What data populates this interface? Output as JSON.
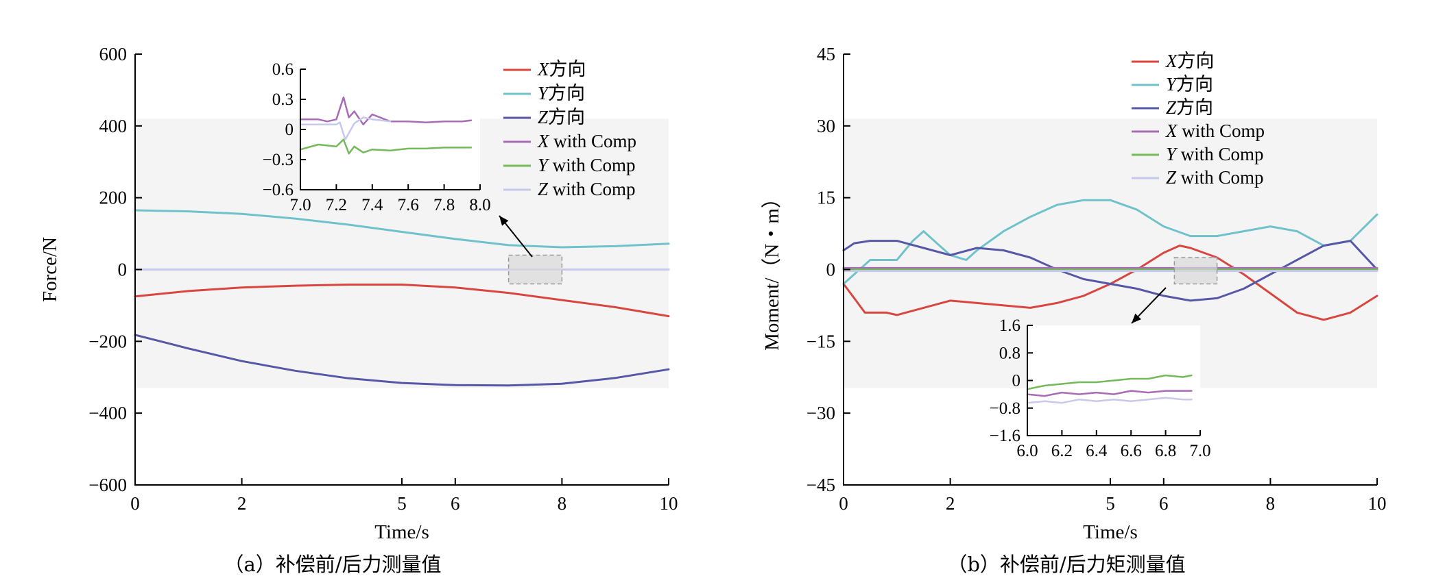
{
  "chart_data": [
    {
      "type": "line",
      "panel": "a",
      "caption": "（a）补偿前/后力测量值",
      "xlabel": "Time/s",
      "ylabel": "Force/N",
      "xlim": [
        0,
        10
      ],
      "ylim": [
        -600,
        600
      ],
      "x_ticks": [
        0,
        2,
        5,
        6,
        8,
        10
      ],
      "x_tick_labels": [
        "0",
        "2",
        "5",
        "6",
        "8",
        "10"
      ],
      "y_ticks": [
        -600,
        -400,
        -200,
        0,
        200,
        400,
        600
      ],
      "y_tick_labels": [
        "−600",
        "−400",
        "−200",
        "0",
        "200",
        "400",
        "600"
      ],
      "legend_position": "top-right",
      "legend": [
        "X方向",
        "Y方向",
        "Z方向",
        "X with Comp",
        "Y with Comp",
        "Z with Comp"
      ],
      "series": [
        {
          "name": "X方向",
          "color": "#d8463f",
          "x": [
            0,
            1,
            2,
            3,
            4,
            5,
            6,
            7,
            8,
            9,
            10
          ],
          "y": [
            -75,
            -60,
            -50,
            -45,
            -42,
            -42,
            -50,
            -65,
            -85,
            -105,
            -130
          ]
        },
        {
          "name": "Y方向",
          "color": "#6fc2cc",
          "x": [
            0,
            1,
            2,
            3,
            4,
            5,
            6,
            7,
            8,
            9,
            10
          ],
          "y": [
            165,
            162,
            155,
            142,
            125,
            105,
            85,
            68,
            62,
            65,
            72
          ]
        },
        {
          "name": "Z方向",
          "color": "#5657a6",
          "x": [
            0,
            1,
            2,
            3,
            4,
            5,
            6,
            7,
            8,
            9,
            10
          ],
          "y": [
            -182,
            -220,
            -255,
            -282,
            -303,
            -316,
            -322,
            -323,
            -318,
            -302,
            -278
          ]
        },
        {
          "name": "X with Comp",
          "color": "#a86bb5",
          "x": [
            0,
            10
          ],
          "y": [
            0,
            0
          ]
        },
        {
          "name": "Y with Comp",
          "color": "#74b95a",
          "x": [
            0,
            10
          ],
          "y": [
            0,
            0
          ]
        },
        {
          "name": "Z with Comp",
          "color": "#c6c8ec",
          "x": [
            0,
            10
          ],
          "y": [
            0,
            0
          ]
        }
      ],
      "zoom_region": {
        "x": [
          7.0,
          8.0
        ],
        "y": [
          -40,
          40
        ]
      },
      "inset": {
        "xlim": [
          7.0,
          8.0
        ],
        "ylim": [
          -0.6,
          0.6
        ],
        "x_ticks": [
          7.0,
          7.2,
          7.4,
          7.6,
          7.8,
          8.0
        ],
        "x_tick_labels": [
          "7.0",
          "7.2",
          "7.4",
          "7.6",
          "7.8",
          "8.0"
        ],
        "y_ticks": [
          -0.6,
          -0.3,
          0,
          0.3,
          0.6
        ],
        "y_tick_labels": [
          "−0.6",
          "−0.3",
          "0",
          "0.3",
          "0.6"
        ],
        "series": [
          {
            "name": "X with Comp",
            "color": "#a86bb5",
            "x": [
              7.0,
              7.1,
              7.15,
              7.2,
              7.24,
              7.27,
              7.3,
              7.35,
              7.4,
              7.5,
              7.6,
              7.7,
              7.8,
              7.9,
              7.95
            ],
            "y": [
              0.1,
              0.1,
              0.08,
              0.1,
              0.32,
              0.12,
              0.18,
              0.05,
              0.15,
              0.08,
              0.08,
              0.07,
              0.08,
              0.08,
              0.09
            ]
          },
          {
            "name": "Y with Comp",
            "color": "#74b95a",
            "x": [
              7.0,
              7.1,
              7.2,
              7.24,
              7.27,
              7.3,
              7.35,
              7.4,
              7.5,
              7.6,
              7.7,
              7.8,
              7.9,
              7.95
            ],
            "y": [
              -0.2,
              -0.15,
              -0.17,
              -0.1,
              -0.24,
              -0.17,
              -0.23,
              -0.2,
              -0.21,
              -0.19,
              -0.19,
              -0.18,
              -0.18,
              -0.18
            ]
          },
          {
            "name": "Z with Comp",
            "color": "#c6c8ec",
            "x": [
              7.0,
              7.1,
              7.2,
              7.22,
              7.25,
              7.3,
              7.35,
              7.4,
              7.5
            ],
            "y": [
              0.05,
              0.05,
              0.05,
              0.07,
              -0.1,
              0.06,
              0.12,
              0.1,
              0.08
            ]
          }
        ]
      }
    },
    {
      "type": "line",
      "panel": "b",
      "caption": "（b）补偿前/后力矩测量值",
      "xlabel": "Time/s",
      "ylabel": "Moment/（N・m）",
      "xlim": [
        0,
        10
      ],
      "ylim": [
        -45,
        45
      ],
      "x_ticks": [
        0,
        2,
        5,
        6,
        8,
        10
      ],
      "x_tick_labels": [
        "0",
        "2",
        "5",
        "6",
        "8",
        "10"
      ],
      "y_ticks": [
        -45,
        -30,
        -15,
        0,
        15,
        30,
        45
      ],
      "y_tick_labels": [
        "−45",
        "−30",
        "−15",
        "0",
        "15",
        "30",
        "45"
      ],
      "legend_position": "top-right",
      "legend": [
        "X方向",
        "Y方向",
        "Z方向",
        "X with Comp",
        "Y with Comp",
        "Z with Comp"
      ],
      "series": [
        {
          "name": "X方向",
          "color": "#d8463f",
          "x": [
            0,
            0.2,
            0.4,
            0.8,
            1.0,
            1.5,
            2.0,
            2.5,
            3.0,
            3.5,
            4.0,
            4.5,
            5.0,
            5.5,
            6.0,
            6.3,
            6.5,
            7.0,
            7.5,
            8.0,
            8.5,
            9.0,
            9.5,
            10.0
          ],
          "y": [
            -3,
            -6,
            -9,
            -9,
            -9.5,
            -8,
            -6.5,
            -7,
            -7.5,
            -8,
            -7,
            -5.5,
            -3,
            0,
            3.5,
            5,
            4.5,
            2.5,
            -1,
            -5,
            -9,
            -10.5,
            -9,
            -5.5
          ]
        },
        {
          "name": "Y方向",
          "color": "#6fc2cc",
          "x": [
            0,
            0.3,
            0.5,
            1.0,
            1.3,
            1.5,
            1.8,
            2.0,
            2.3,
            2.5,
            3.0,
            3.5,
            4.0,
            4.5,
            5.0,
            5.5,
            6.0,
            6.5,
            7.0,
            7.5,
            8.0,
            8.5,
            9.0,
            9.5,
            10.0
          ],
          "y": [
            -3,
            0,
            2,
            2,
            6,
            8,
            5,
            3,
            2,
            4,
            8,
            11,
            13.5,
            14.5,
            14.5,
            12.5,
            9,
            7,
            7,
            8,
            9,
            8,
            5,
            6,
            11.5
          ]
        },
        {
          "name": "Z方向",
          "color": "#5657a6",
          "x": [
            0,
            0.2,
            0.5,
            1.0,
            1.5,
            2.0,
            2.5,
            3.0,
            3.5,
            4.0,
            4.5,
            5.0,
            5.5,
            6.0,
            6.5,
            7.0,
            7.5,
            8.0,
            8.5,
            9.0,
            9.5,
            10.0
          ],
          "y": [
            4,
            5.5,
            6,
            6,
            4.5,
            3,
            4.5,
            4,
            2.5,
            0,
            -2,
            -3,
            -4,
            -5.5,
            -6.5,
            -6,
            -4,
            -1,
            2,
            5,
            6,
            0
          ]
        },
        {
          "name": "X with Comp",
          "color": "#a86bb5",
          "x": [
            0,
            10
          ],
          "y": [
            0.3,
            0.3
          ]
        },
        {
          "name": "Y with Comp",
          "color": "#74b95a",
          "x": [
            0,
            10
          ],
          "y": [
            0,
            0
          ]
        },
        {
          "name": "Z with Comp",
          "color": "#c6c8ec",
          "x": [
            0,
            10
          ],
          "y": [
            -0.3,
            -0.3
          ]
        }
      ],
      "zoom_region": {
        "x": [
          6.2,
          7.0
        ],
        "y": [
          -3,
          2.5
        ]
      },
      "inset": {
        "xlim": [
          6.0,
          7.0
        ],
        "ylim": [
          -1.6,
          1.6
        ],
        "x_ticks": [
          6.0,
          6.2,
          6.4,
          6.6,
          6.8,
          7.0
        ],
        "x_tick_labels": [
          "6.0",
          "6.2",
          "6.4",
          "6.6",
          "6.8",
          "7.0"
        ],
        "y_ticks": [
          -1.6,
          -0.8,
          0,
          0.8,
          1.6
        ],
        "y_tick_labels": [
          "−1.6",
          "−0.8",
          "0",
          "0.8",
          "1.6"
        ],
        "series": [
          {
            "name": "X with Comp",
            "color": "#a86bb5",
            "x": [
              6.0,
              6.1,
              6.2,
              6.3,
              6.4,
              6.5,
              6.6,
              6.7,
              6.8,
              6.9,
              6.95
            ],
            "y": [
              -0.4,
              -0.45,
              -0.35,
              -0.4,
              -0.35,
              -0.4,
              -0.3,
              -0.35,
              -0.3,
              -0.3,
              -0.3
            ]
          },
          {
            "name": "Y with Comp",
            "color": "#74b95a",
            "x": [
              6.0,
              6.1,
              6.2,
              6.3,
              6.4,
              6.5,
              6.6,
              6.7,
              6.8,
              6.9,
              6.95
            ],
            "y": [
              -0.25,
              -0.15,
              -0.1,
              -0.05,
              -0.05,
              0.0,
              0.05,
              0.05,
              0.15,
              0.1,
              0.15
            ]
          },
          {
            "name": "Z with Comp",
            "color": "#c6c8ec",
            "x": [
              6.0,
              6.1,
              6.2,
              6.3,
              6.4,
              6.5,
              6.6,
              6.7,
              6.8,
              6.9,
              6.95
            ],
            "y": [
              -0.65,
              -0.6,
              -0.65,
              -0.55,
              -0.6,
              -0.55,
              -0.6,
              -0.55,
              -0.5,
              -0.55,
              -0.55
            ]
          }
        ]
      }
    }
  ]
}
